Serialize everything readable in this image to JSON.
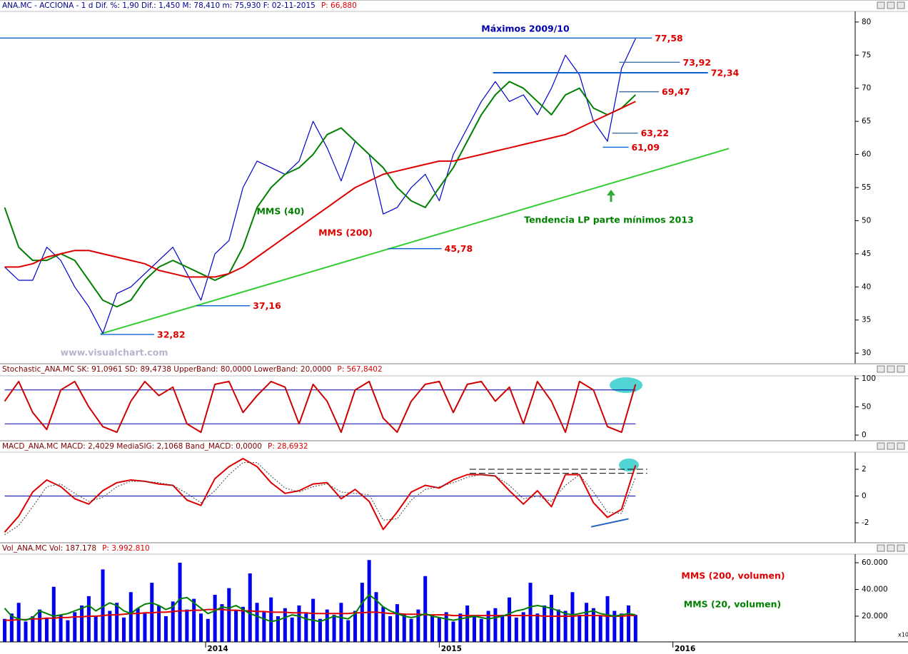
{
  "chart_data": [
    {
      "type": "line",
      "title": "ANA.MC - ACCIONA - 1 d  Dif. %: 1,90  Dif.: 1,450  M: 78,410  m: 75,930  F: 02-11-2015",
      "price_label": "P: 66,880",
      "x": [
        2013.14,
        2013.2,
        2013.26,
        2013.32,
        2013.38,
        2013.44,
        2013.5,
        2013.56,
        2013.62,
        2013.68,
        2013.74,
        2013.8,
        2013.86,
        2013.92,
        2013.98,
        2014.04,
        2014.1,
        2014.16,
        2014.22,
        2014.28,
        2014.34,
        2014.4,
        2014.46,
        2014.52,
        2014.58,
        2014.64,
        2014.7,
        2014.76,
        2014.82,
        2014.88,
        2014.94,
        2015.0,
        2015.06,
        2015.12,
        2015.18,
        2015.24,
        2015.3,
        2015.36,
        2015.42,
        2015.48,
        2015.54,
        2015.6,
        2015.66,
        2015.72,
        2015.78,
        2015.84
      ],
      "xlim": [
        2013.12,
        2016.78
      ],
      "ylim": [
        28.4,
        81.6
      ],
      "yticks": [
        30,
        35,
        40,
        45,
        50,
        55,
        60,
        65,
        70,
        75,
        80
      ],
      "series": [
        {
          "color": "#0000cc",
          "values": [
            43,
            41,
            41,
            46,
            44,
            40,
            37,
            33,
            39,
            40,
            42,
            44,
            46,
            42,
            38,
            45,
            47,
            55,
            59,
            58,
            57,
            59,
            65,
            61,
            56,
            62,
            60,
            51,
            52,
            55,
            57,
            53,
            60,
            64,
            68,
            71,
            68,
            69,
            66,
            70,
            75,
            72,
            65,
            62,
            73,
            77.5
          ]
        },
        {
          "name": "MMS (40)",
          "color": "#008000",
          "values": [
            52,
            46,
            44,
            44,
            45,
            44,
            41,
            38,
            37,
            38,
            41,
            43,
            44,
            43,
            42,
            41,
            42,
            46,
            52,
            55,
            57,
            58,
            60,
            63,
            64,
            62,
            60,
            58,
            55,
            53,
            52,
            55,
            58,
            62,
            66,
            69,
            71,
            70,
            68,
            66,
            69,
            70,
            67,
            66,
            67,
            69
          ]
        },
        {
          "name": "MMS (200)",
          "color": "#dd0000",
          "values": [
            43,
            43,
            43.5,
            44.5,
            45,
            45.5,
            45.5,
            45,
            44.5,
            44,
            43.5,
            42.5,
            42,
            41.5,
            41.5,
            41.5,
            42,
            43,
            44.5,
            46,
            47.5,
            49,
            50.5,
            52,
            53.5,
            55,
            56,
            57,
            57.5,
            58,
            58.5,
            59,
            59,
            59.5,
            60,
            60.5,
            61,
            61.5,
            62,
            62.5,
            63,
            64,
            65,
            66,
            67,
            68
          ]
        }
      ],
      "levels": [
        {
          "value": 77.58,
          "label": "77,58",
          "x": [
            2013.12,
            2015.91
          ],
          "color": "#1060d0"
        },
        {
          "value": 73.92,
          "label": "73,92",
          "x": [
            2015.77,
            2016.03
          ],
          "color": "#4070a0"
        },
        {
          "value": 72.34,
          "label": "72,34",
          "x": [
            2015.23,
            2016.15
          ],
          "color": "#1060d0"
        },
        {
          "value": 69.47,
          "label": "69,47",
          "x": [
            2015.77,
            2015.94
          ],
          "color": "#4070a0"
        },
        {
          "value": 63.22,
          "label": "63,22",
          "x": [
            2015.74,
            2015.85
          ],
          "color": "#4070a0"
        },
        {
          "value": 61.09,
          "label": "61,09",
          "x": [
            2015.7,
            2015.81
          ],
          "color": "#1060d0"
        },
        {
          "value": 45.78,
          "label": "45,78",
          "x": [
            2014.78,
            2015.01
          ],
          "color": "#1060d0"
        },
        {
          "value": 37.16,
          "label": "37,16",
          "x": [
            2013.96,
            2014.19
          ],
          "color": "#1060d0"
        },
        {
          "value": 32.82,
          "label": "32,82",
          "x": [
            2013.55,
            2013.78
          ],
          "color": "#1060d0"
        }
      ],
      "trendline": {
        "x": [
          2013.55,
          2016.24
        ],
        "y": [
          32.9,
          60.9
        ],
        "color": "#33cc33"
      },
      "annotations": [
        "Máximos 2009/10",
        "Tendencia LP parte mínimos 2013"
      ],
      "watermark": "www.visualchart.com"
    },
    {
      "type": "line",
      "title": "Stochastic_ANA.MC SK: 91,0961 SD: 89,4738 UpperBand: 80,0000 LowerBand: 20,0000",
      "price_label": "P: 567,8402",
      "x": [
        2013.14,
        2013.2,
        2013.26,
        2013.32,
        2013.38,
        2013.44,
        2013.5,
        2013.56,
        2013.62,
        2013.68,
        2013.74,
        2013.8,
        2013.86,
        2013.92,
        2013.98,
        2014.04,
        2014.1,
        2014.16,
        2014.22,
        2014.28,
        2014.34,
        2014.4,
        2014.46,
        2014.52,
        2014.58,
        2014.64,
        2014.7,
        2014.76,
        2014.82,
        2014.88,
        2014.94,
        2015.0,
        2015.06,
        2015.12,
        2015.18,
        2015.24,
        2015.3,
        2015.36,
        2015.42,
        2015.48,
        2015.54,
        2015.6,
        2015.66,
        2015.72,
        2015.78,
        2015.84
      ],
      "xlim": [
        2013.12,
        2016.78
      ],
      "ylim": [
        -10,
        105
      ],
      "yticks": [
        0,
        50,
        100
      ],
      "series": [
        {
          "color": "#cc0000",
          "values": [
            60,
            95,
            40,
            10,
            80,
            95,
            50,
            15,
            5,
            60,
            95,
            70,
            85,
            20,
            5,
            90,
            95,
            40,
            70,
            95,
            85,
            20,
            90,
            60,
            5,
            80,
            95,
            30,
            5,
            60,
            90,
            95,
            40,
            90,
            95,
            60,
            85,
            20,
            95,
            60,
            5,
            95,
            80,
            15,
            5,
            90
          ]
        }
      ],
      "bands": [
        80,
        20
      ],
      "band_color": "#0000aa"
    },
    {
      "type": "line",
      "title": "MACD_ANA.MC MACD: 2,4029 MediaSIG: 2,1068 Band_MACD: 0,0000",
      "price_label": "P: 28,6932",
      "x": [
        2013.14,
        2013.2,
        2013.26,
        2013.32,
        2013.38,
        2013.44,
        2013.5,
        2013.56,
        2013.62,
        2013.68,
        2013.74,
        2013.8,
        2013.86,
        2013.92,
        2013.98,
        2014.04,
        2014.1,
        2014.16,
        2014.22,
        2014.28,
        2014.34,
        2014.4,
        2014.46,
        2014.52,
        2014.58,
        2014.64,
        2014.7,
        2014.76,
        2014.82,
        2014.88,
        2014.94,
        2015.0,
        2015.06,
        2015.12,
        2015.18,
        2015.24,
        2015.3,
        2015.36,
        2015.42,
        2015.48,
        2015.54,
        2015.6,
        2015.66,
        2015.72,
        2015.78,
        2015.84
      ],
      "xlim": [
        2013.12,
        2016.78
      ],
      "ylim": [
        -3.49,
        3.28
      ],
      "yticks": [
        -2,
        0,
        2
      ],
      "series": [
        {
          "color": "#dd0000",
          "values": [
            -2.7,
            -1.5,
            0.3,
            1.2,
            0.7,
            -0.2,
            -0.6,
            0.4,
            1.0,
            1.2,
            1.1,
            0.9,
            0.8,
            -0.3,
            -0.7,
            1.3,
            2.2,
            2.8,
            2.2,
            1.0,
            0.2,
            0.4,
            0.9,
            1.0,
            -0.2,
            0.5,
            -0.4,
            -2.5,
            -1.2,
            0.3,
            0.8,
            0.6,
            1.2,
            1.6,
            1.6,
            1.5,
            0.4,
            -0.6,
            0.4,
            -0.8,
            1.6,
            1.6,
            -0.5,
            -1.6,
            -1.0,
            2.3
          ]
        },
        {
          "color": "#444444",
          "style": "dotted",
          "values": [
            -2.9,
            -2.2,
            -0.8,
            0.7,
            0.9,
            0.2,
            -0.4,
            -0.1,
            0.7,
            1.1,
            1.1,
            1.0,
            0.8,
            0.2,
            -0.5,
            0.4,
            1.6,
            2.5,
            2.5,
            1.5,
            0.6,
            0.3,
            0.7,
            0.9,
            0.3,
            0.2,
            0.1,
            -1.8,
            -1.7,
            -0.3,
            0.5,
            0.7,
            1.0,
            1.4,
            1.6,
            1.5,
            0.8,
            -0.2,
            0.0,
            -0.4,
            0.8,
            1.6,
            0.3,
            -1.2,
            -1.3,
            1.4
          ]
        }
      ],
      "bands": [
        0
      ],
      "band_color": "#0000aa",
      "dashed_levels": {
        "values": [
          2.0,
          1.7
        ],
        "x": [
          2015.13,
          2015.89
        ]
      },
      "divergence": {
        "x": [
          2015.65,
          2015.81
        ],
        "y": [
          -2.3,
          -1.7
        ],
        "color": "#2060c0"
      }
    },
    {
      "type": "bar",
      "title": "Vol_ANA.MC Vol: 187.178",
      "price_label": "P: 3.992.810",
      "x": [
        2013.14,
        2013.17,
        2013.2,
        2013.23,
        2013.26,
        2013.29,
        2013.32,
        2013.35,
        2013.38,
        2013.41,
        2013.44,
        2013.47,
        2013.5,
        2013.53,
        2013.56,
        2013.59,
        2013.62,
        2013.65,
        2013.68,
        2013.71,
        2013.74,
        2013.77,
        2013.8,
        2013.83,
        2013.86,
        2013.89,
        2013.92,
        2013.95,
        2013.98,
        2014.01,
        2014.04,
        2014.07,
        2014.1,
        2014.13,
        2014.16,
        2014.19,
        2014.22,
        2014.25,
        2014.28,
        2014.31,
        2014.34,
        2014.37,
        2014.4,
        2014.43,
        2014.46,
        2014.49,
        2014.52,
        2014.55,
        2014.58,
        2014.61,
        2014.64,
        2014.67,
        2014.7,
        2014.73,
        2014.76,
        2014.79,
        2014.82,
        2014.85,
        2014.88,
        2014.91,
        2014.94,
        2014.97,
        2015.0,
        2015.03,
        2015.06,
        2015.09,
        2015.12,
        2015.15,
        2015.18,
        2015.21,
        2015.24,
        2015.27,
        2015.3,
        2015.33,
        2015.36,
        2015.39,
        2015.42,
        2015.45,
        2015.48,
        2015.51,
        2015.54,
        2015.57,
        2015.6,
        2015.63,
        2015.66,
        2015.69,
        2015.72,
        2015.75,
        2015.78,
        2015.81,
        2015.84
      ],
      "xlim": [
        2013.12,
        2016.78
      ],
      "ylim": [
        800,
        66400
      ],
      "yticks": [
        {
          "value": 20000,
          "label": "20.000"
        },
        {
          "value": 40000,
          "label": "40.000"
        },
        {
          "value": 60000,
          "label": "60.000"
        }
      ],
      "xticks": [
        2014,
        2015,
        2016
      ],
      "axis_note": "x10",
      "series": [
        {
          "color": "#0000ee",
          "values": [
            18000,
            22000,
            30000,
            16000,
            20000,
            25000,
            19000,
            42000,
            21000,
            17000,
            23000,
            28000,
            35000,
            20000,
            55000,
            24000,
            30000,
            19000,
            38000,
            26000,
            22000,
            45000,
            28000,
            20000,
            31000,
            60000,
            25000,
            33000,
            22000,
            18000,
            36000,
            29000,
            41000,
            24000,
            27000,
            52000,
            30000,
            23000,
            34000,
            20000,
            26000,
            19000,
            28000,
            22000,
            33000,
            18000,
            25000,
            21000,
            30000,
            17000,
            24000,
            45000,
            62000,
            38000,
            27000,
            20000,
            29000,
            22000,
            18000,
            25000,
            50000,
            21000,
            19000,
            23000,
            16000,
            22000,
            28000,
            20000,
            18000,
            24000,
            26000,
            21000,
            34000,
            19000,
            23000,
            45000,
            22000,
            28000,
            36000,
            25000,
            24000,
            38000,
            21000,
            30000,
            26000,
            20000,
            35000,
            24000,
            22000,
            28000,
            21000
          ]
        },
        {
          "name": "MMS (200, volumen)",
          "type": "line",
          "color": "#dd0000",
          "values": [
            17000,
            17000,
            17500,
            17500,
            18000,
            18000,
            18500,
            18500,
            19000,
            19000,
            19500,
            19500,
            20000,
            20000,
            20500,
            21000,
            21000,
            21500,
            22000,
            22000,
            22500,
            22500,
            23000,
            23000,
            23500,
            24000,
            24000,
            24500,
            24500,
            25000,
            25000,
            25000,
            24500,
            24500,
            24000,
            24000,
            23500,
            23500,
            23000,
            23000,
            23000,
            22500,
            22500,
            22500,
            22000,
            22000,
            22000,
            22000,
            22000,
            22000,
            22500,
            22500,
            23000,
            23000,
            22500,
            22000,
            22000,
            21500,
            21500,
            21500,
            21000,
            21000,
            21000,
            21000,
            20500,
            20500,
            20500,
            20500,
            20500,
            20500,
            20500,
            20500,
            20500,
            20500,
            20500,
            20500,
            20500,
            20000,
            20000,
            20000,
            20000,
            20000,
            20500,
            20500,
            20500,
            20500,
            20000,
            20000,
            20000,
            20500,
            20500
          ]
        },
        {
          "name": "MMS (20, volumen)",
          "type": "line",
          "color": "#008000",
          "values": [
            26000,
            20000,
            18000,
            17000,
            19000,
            24000,
            22000,
            20000,
            21000,
            22000,
            24000,
            26000,
            28000,
            24000,
            27000,
            30000,
            28000,
            24000,
            22000,
            26000,
            29000,
            30000,
            28000,
            25000,
            27000,
            33000,
            34000,
            30000,
            26000,
            22000,
            24000,
            27000,
            26000,
            28000,
            25000,
            22000,
            20000,
            18000,
            16000,
            17000,
            19000,
            21000,
            20000,
            18000,
            17000,
            16000,
            18000,
            20000,
            19000,
            18000,
            22000,
            30000,
            36000,
            32000,
            27000,
            24000,
            22000,
            20000,
            19000,
            20000,
            22000,
            20000,
            19000,
            18000,
            17000,
            18000,
            19000,
            20000,
            19000,
            18000,
            19000,
            20000,
            22000,
            24000,
            25000,
            27000,
            28000,
            27000,
            26000,
            24000,
            22000,
            21000,
            22000,
            23000,
            24000,
            22000,
            21000,
            20000,
            21000,
            22000,
            21000
          ]
        }
      ]
    }
  ]
}
